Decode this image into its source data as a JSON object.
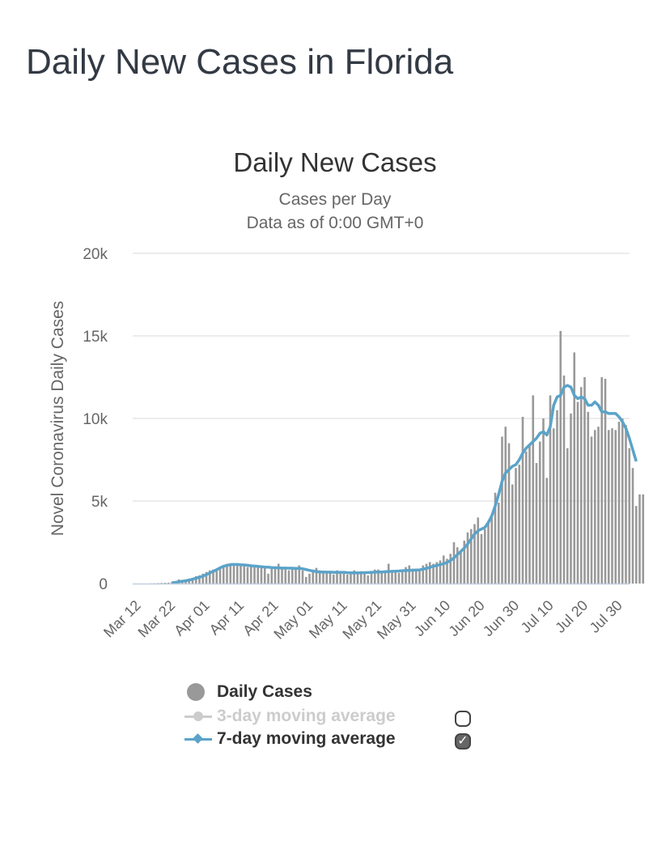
{
  "page": {
    "title": "Daily New Cases in Florida"
  },
  "legend": {
    "items": [
      {
        "label": "Daily Cases",
        "color": "#999999",
        "kind": "dot",
        "active": true
      },
      {
        "label": "3-day moving average",
        "color": "#cccccc",
        "kind": "line-dot",
        "active": false,
        "checkbox": false
      },
      {
        "label": "7-day moving average",
        "color": "#5aa3c9",
        "kind": "line-diamond",
        "active": true,
        "checkbox": true
      }
    ]
  },
  "chart_data": {
    "type": "bar",
    "title": "Daily New Cases",
    "subtitle_line1": "Cases per Day",
    "subtitle_line2": "Data as of 0:00 GMT+0",
    "ylabel": "Novel Coronavirus Daily Cases",
    "xlabel": "",
    "ylim": [
      0,
      20000
    ],
    "yticks": [
      {
        "value": 0,
        "label": "0"
      },
      {
        "value": 5000,
        "label": "5k"
      },
      {
        "value": 10000,
        "label": "10k"
      },
      {
        "value": 15000,
        "label": "15k"
      },
      {
        "value": 20000,
        "label": "20k"
      }
    ],
    "start_date": "Mar 12",
    "xticks": [
      {
        "day": 0,
        "label": "Mar 12"
      },
      {
        "day": 10,
        "label": "Mar 22"
      },
      {
        "day": 20,
        "label": "Apr 01"
      },
      {
        "day": 30,
        "label": "Apr 11"
      },
      {
        "day": 40,
        "label": "Apr 21"
      },
      {
        "day": 50,
        "label": "May 01"
      },
      {
        "day": 60,
        "label": "May 11"
      },
      {
        "day": 70,
        "label": "May 21"
      },
      {
        "day": 80,
        "label": "May 31"
      },
      {
        "day": 90,
        "label": "Jun 10"
      },
      {
        "day": 100,
        "label": "Jun 20"
      },
      {
        "day": 110,
        "label": "Jun 30"
      },
      {
        "day": 120,
        "label": "Jul 10"
      },
      {
        "day": 130,
        "label": "Jul 20"
      },
      {
        "day": 140,
        "label": "Jul 30"
      }
    ],
    "series": [
      {
        "name": "Daily Cases",
        "color": "#999999",
        "values": [
          0,
          0,
          0,
          0,
          10,
          20,
          30,
          40,
          50,
          60,
          100,
          150,
          250,
          200,
          230,
          300,
          350,
          450,
          500,
          600,
          700,
          800,
          850,
          900,
          1000,
          1000,
          1200,
          1200,
          1100,
          1150,
          1100,
          1200,
          1000,
          1150,
          1100,
          1000,
          1100,
          1000,
          600,
          900,
          1000,
          1200,
          1000,
          900,
          800,
          1000,
          950,
          1100,
          800,
          400,
          600,
          700,
          950,
          800,
          650,
          700,
          750,
          550,
          800,
          700,
          600,
          550,
          650,
          800,
          700,
          750,
          650,
          500,
          700,
          850,
          850,
          750,
          700,
          1200,
          800,
          700,
          650,
          700,
          1000,
          1100,
          900,
          750,
          800,
          1100,
          1200,
          1300,
          1200,
          1300,
          1400,
          1700,
          1500,
          1800,
          2500,
          2200,
          1900,
          2600,
          3100,
          3300,
          3600,
          4000,
          3000,
          3300,
          3800,
          4200,
          5500,
          4900,
          8900,
          9500,
          8500,
          6000,
          7000,
          7200,
          10100,
          8000,
          8400,
          11400,
          7300,
          8600,
          10000,
          6400,
          11400,
          9400,
          10500,
          15300,
          12600,
          8200,
          10300,
          14000,
          11000,
          11900,
          12500,
          10400,
          8900,
          9300,
          9500,
          12500,
          12400,
          9300,
          9400,
          9300,
          9800,
          10000,
          9600,
          8200,
          7000,
          4700,
          5400,
          5400
        ],
        "bar_shade": [
          1,
          1,
          1,
          1,
          1,
          1,
          1,
          1,
          1,
          1,
          1,
          1,
          1,
          1,
          1,
          1,
          1,
          1,
          1,
          1,
          1,
          1,
          1,
          1,
          1,
          1,
          1,
          1,
          1,
          1,
          1,
          1,
          1,
          1,
          1,
          1,
          1,
          1,
          1,
          1,
          1,
          1,
          1,
          1,
          1,
          1,
          1,
          1,
          1,
          1,
          1,
          1,
          1,
          1,
          1,
          1,
          1,
          1,
          1,
          1,
          1,
          1,
          1,
          1,
          1,
          1,
          1,
          1,
          1,
          1,
          1,
          1,
          1,
          1,
          1,
          1,
          1,
          1,
          1,
          1,
          1,
          1,
          1,
          1,
          1,
          1,
          1,
          1,
          1,
          1,
          1,
          1,
          1,
          1,
          1,
          1,
          1,
          1,
          1,
          1,
          1,
          1,
          1,
          1,
          1,
          1,
          1,
          1,
          1,
          1,
          1,
          1,
          1,
          1,
          1,
          1,
          1,
          1,
          1,
          1,
          1,
          1,
          1,
          1,
          1,
          1,
          1,
          1,
          1,
          1,
          1,
          1,
          1,
          1,
          1,
          1,
          1,
          1,
          1,
          1,
          1,
          1,
          1,
          1,
          1,
          1,
          1,
          1,
          1,
          1,
          1,
          1,
          1,
          1
        ]
      },
      {
        "name": "7-day moving average",
        "color": "#5aa3c9",
        "values": [
          null,
          null,
          null,
          null,
          null,
          null,
          null,
          null,
          null,
          null,
          50,
          70,
          110,
          140,
          170,
          210,
          260,
          330,
          380,
          450,
          540,
          640,
          740,
          840,
          950,
          1050,
          1100,
          1150,
          1160,
          1160,
          1140,
          1130,
          1110,
          1080,
          1060,
          1040,
          1020,
          1000,
          990,
          970,
          960,
          950,
          940,
          940,
          930,
          930,
          920,
          920,
          900,
          850,
          800,
          760,
          730,
          700,
          700,
          690,
          690,
          680,
          680,
          680,
          680,
          660,
          650,
          650,
          650,
          650,
          660,
          670,
          680,
          690,
          700,
          700,
          720,
          730,
          740,
          750,
          760,
          780,
          790,
          800,
          810,
          820,
          830,
          870,
          920,
          980,
          1050,
          1100,
          1150,
          1200,
          1280,
          1400,
          1550,
          1750,
          1950,
          2150,
          2400,
          2700,
          3000,
          3200,
          3300,
          3400,
          3700,
          4100,
          4700,
          5400,
          6200,
          6700,
          6900,
          7100,
          7200,
          7500,
          7900,
          8200,
          8400,
          8600,
          8800,
          9100,
          9200,
          9000,
          9500,
          10800,
          11300,
          11400,
          11900,
          12000,
          11900,
          11400,
          11200,
          11300,
          11200,
          10800,
          10800,
          11000,
          10800,
          10400,
          10400,
          10300,
          10300,
          10300,
          10100,
          9800,
          9400,
          8800,
          8100,
          7400
        ]
      }
    ],
    "legend_position": "bottom-center"
  }
}
